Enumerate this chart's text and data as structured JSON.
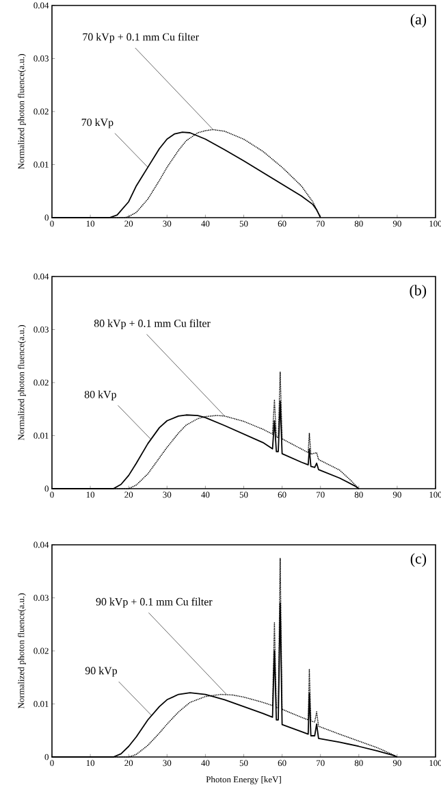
{
  "chart_data": [
    {
      "type": "line",
      "ylabel": "Normalized photon fluence(a.u.)",
      "xlim": [
        0,
        100
      ],
      "ylim": [
        0,
        0.04
      ],
      "xticks": [
        0,
        10,
        20,
        30,
        40,
        50,
        60,
        70,
        80,
        90,
        100
      ],
      "yticks": [
        0,
        0.01,
        0.02,
        0.03,
        0.04
      ],
      "marker": "none",
      "annotations": [
        "(a)",
        {
          "text": "70 kVp + 0.1 mm Cu filter",
          "x": 42,
          "y": 0.0166
        },
        {
          "text": "70 kVp",
          "x": 25,
          "y": 0.0095
        }
      ],
      "series": [
        {
          "color": "#000000",
          "line_style": "solid",
          "x": [
            0,
            15,
            17,
            20,
            22,
            25,
            28,
            30,
            32,
            34,
            36,
            40,
            45,
            50,
            55,
            60,
            65,
            68,
            69,
            70
          ],
          "values": [
            0,
            0,
            0.0005,
            0.003,
            0.006,
            0.0095,
            0.013,
            0.0148,
            0.0158,
            0.0161,
            0.016,
            0.0148,
            0.0128,
            0.0107,
            0.0085,
            0.0063,
            0.0041,
            0.0025,
            0.0015,
            0
          ]
        },
        {
          "color": "#000000",
          "line_style": "dotted",
          "x": [
            0,
            19,
            20,
            22,
            25,
            28,
            30,
            33,
            35,
            38,
            40,
            42,
            45,
            50,
            55,
            60,
            65,
            68,
            70
          ],
          "values": [
            0,
            0,
            0.0002,
            0.001,
            0.0035,
            0.007,
            0.0095,
            0.0127,
            0.0145,
            0.016,
            0.0164,
            0.0166,
            0.0163,
            0.0148,
            0.0125,
            0.0095,
            0.006,
            0.003,
            0
          ]
        }
      ]
    },
    {
      "type": "line",
      "ylabel": "Normalized photon fluence(a.u.)",
      "xlim": [
        0,
        100
      ],
      "ylim": [
        0,
        0.04
      ],
      "xticks": [
        0,
        10,
        20,
        30,
        40,
        50,
        60,
        70,
        80,
        90,
        100
      ],
      "yticks": [
        0,
        0.01,
        0.02,
        0.03,
        0.04
      ],
      "marker": "none",
      "annotations": [
        "(b)",
        {
          "text": "80 kVp + 0.1 mm Cu filter",
          "x": 45,
          "y": 0.0137
        },
        {
          "text": "80 kVp",
          "x": 25.8,
          "y": 0.0093
        }
      ],
      "series": [
        {
          "color": "#000000",
          "line_style": "solid",
          "x": [
            0,
            16,
            18,
            20,
            22,
            25,
            28,
            30,
            33,
            35,
            38,
            40,
            45,
            50,
            55,
            57.5,
            58,
            58.5,
            59,
            59.5,
            60,
            65,
            66.8,
            67.1,
            67.5,
            68.5,
            69,
            69.5,
            75,
            79,
            80
          ],
          "values": [
            0,
            0,
            0.0008,
            0.0025,
            0.0048,
            0.0085,
            0.0115,
            0.0128,
            0.0137,
            0.0139,
            0.0138,
            0.0134,
            0.0119,
            0.0103,
            0.0087,
            0.0075,
            0.0128,
            0.007,
            0.007,
            0.0165,
            0.0066,
            0.005,
            0.0045,
            0.0075,
            0.0042,
            0.004,
            0.0048,
            0.0036,
            0.002,
            0.0005,
            0
          ]
        },
        {
          "color": "#000000",
          "line_style": "dotted",
          "x": [
            0,
            20,
            22,
            25,
            28,
            30,
            33,
            35,
            38,
            40,
            43,
            45,
            50,
            55,
            57.5,
            58,
            58.5,
            59,
            59.5,
            60,
            65,
            66.8,
            67.1,
            67.5,
            69,
            69.5,
            75,
            78,
            80
          ],
          "values": [
            0,
            0,
            0.0007,
            0.0028,
            0.0058,
            0.0078,
            0.0105,
            0.012,
            0.0132,
            0.0136,
            0.0138,
            0.0137,
            0.0127,
            0.0112,
            0.0103,
            0.0168,
            0.0098,
            0.0096,
            0.022,
            0.0094,
            0.0075,
            0.0068,
            0.0105,
            0.0065,
            0.0068,
            0.0055,
            0.0035,
            0.0015,
            0
          ]
        }
      ]
    },
    {
      "type": "line",
      "xlabel": "Photon Energy [keV]",
      "ylabel": "Normalized photon fluence(a.u.)",
      "xlim": [
        0,
        100
      ],
      "ylim": [
        0,
        0.04
      ],
      "xticks": [
        0,
        10,
        20,
        30,
        40,
        50,
        60,
        70,
        80,
        90,
        100
      ],
      "yticks": [
        0,
        0.01,
        0.02,
        0.03,
        0.04
      ],
      "marker": "none",
      "annotations": [
        "(c)",
        {
          "text": "90 kVp + 0.1 mm Cu filter",
          "x": 45.5,
          "y": 0.0118
        },
        {
          "text": "90 kVp",
          "x": 26,
          "y": 0.0078
        }
      ],
      "series": [
        {
          "color": "#000000",
          "line_style": "solid",
          "x": [
            0,
            16,
            18,
            20,
            22,
            25,
            28,
            30,
            33,
            36,
            40,
            45,
            50,
            55,
            57.5,
            58,
            58.5,
            59,
            59.5,
            60,
            65,
            66.8,
            67.1,
            67.5,
            68.5,
            69,
            69.5,
            75,
            80,
            85,
            89,
            90
          ],
          "values": [
            0,
            0,
            0.0006,
            0.002,
            0.0038,
            0.007,
            0.0095,
            0.0108,
            0.0118,
            0.0121,
            0.0118,
            0.0108,
            0.0095,
            0.0082,
            0.0075,
            0.02,
            0.007,
            0.007,
            0.029,
            0.0061,
            0.0048,
            0.0043,
            0.012,
            0.004,
            0.004,
            0.0062,
            0.0035,
            0.0028,
            0.002,
            0.0011,
            0.0003,
            0
          ]
        },
        {
          "color": "#000000",
          "line_style": "dotted",
          "x": [
            0,
            20,
            22,
            25,
            28,
            30,
            33,
            36,
            40,
            44,
            47,
            50,
            55,
            57.5,
            58,
            58.5,
            59,
            59.5,
            60,
            65,
            66.8,
            67.1,
            67.5,
            68.5,
            69,
            69.5,
            75,
            80,
            85,
            89,
            90
          ],
          "values": [
            0,
            0,
            0.0005,
            0.0022,
            0.0045,
            0.0062,
            0.0085,
            0.0103,
            0.0114,
            0.0118,
            0.0117,
            0.0113,
            0.0103,
            0.0097,
            0.0253,
            0.0093,
            0.0093,
            0.0375,
            0.009,
            0.0075,
            0.007,
            0.0165,
            0.0068,
            0.0066,
            0.0085,
            0.0058,
            0.0043,
            0.003,
            0.0017,
            0.0004,
            0
          ]
        }
      ]
    }
  ]
}
